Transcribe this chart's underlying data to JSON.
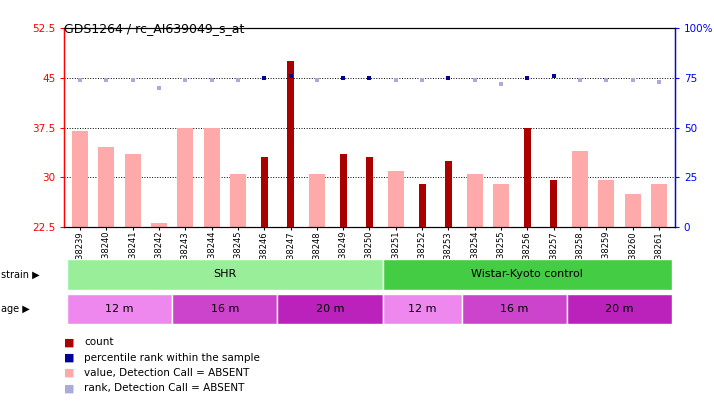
{
  "title": "GDS1264 / rc_AI639049_s_at",
  "samples": [
    "GSM38239",
    "GSM38240",
    "GSM38241",
    "GSM38242",
    "GSM38243",
    "GSM38244",
    "GSM38245",
    "GSM38246",
    "GSM38247",
    "GSM38248",
    "GSM38249",
    "GSM38250",
    "GSM38251",
    "GSM38252",
    "GSM38253",
    "GSM38254",
    "GSM38255",
    "GSM38256",
    "GSM38257",
    "GSM38258",
    "GSM38259",
    "GSM38260",
    "GSM38261"
  ],
  "count_values": [
    null,
    null,
    null,
    null,
    null,
    null,
    null,
    33.0,
    47.5,
    null,
    33.5,
    33.0,
    null,
    29.0,
    32.5,
    null,
    null,
    37.5,
    29.5,
    null,
    null,
    null,
    null
  ],
  "value_absent": [
    37.0,
    34.5,
    33.5,
    23.0,
    37.5,
    37.5,
    30.5,
    null,
    null,
    30.5,
    null,
    null,
    31.0,
    null,
    null,
    30.5,
    29.0,
    null,
    null,
    34.0,
    29.5,
    27.5,
    29.0
  ],
  "pct_rank_present": [
    null,
    null,
    null,
    null,
    null,
    null,
    null,
    75.0,
    76.0,
    null,
    75.0,
    75.0,
    null,
    null,
    75.0,
    null,
    null,
    75.0,
    76.0,
    null,
    null,
    null,
    null
  ],
  "pct_rank_absent": [
    74.0,
    74.0,
    74.0,
    70.0,
    74.0,
    74.0,
    74.0,
    null,
    null,
    74.0,
    null,
    null,
    74.0,
    74.0,
    null,
    74.0,
    72.0,
    null,
    null,
    74.0,
    74.0,
    74.0,
    73.0
  ],
  "ylim_left": [
    22.5,
    52.5
  ],
  "ylim_right": [
    0,
    100
  ],
  "yticks_left": [
    22.5,
    30,
    37.5,
    45,
    52.5
  ],
  "yticks_right": [
    0,
    25,
    50,
    75,
    100
  ],
  "ytick_labels_right": [
    "0",
    "25",
    "50",
    "75",
    "100%"
  ],
  "strain_groups": [
    {
      "label": "SHR",
      "start": 0,
      "end": 12,
      "color": "#99EE99"
    },
    {
      "label": "Wistar-Kyoto control",
      "start": 12,
      "end": 23,
      "color": "#44CC44"
    }
  ],
  "age_groups": [
    {
      "label": "12 m",
      "start": 0,
      "end": 4,
      "color": "#EE88EE"
    },
    {
      "label": "16 m",
      "start": 4,
      "end": 8,
      "color": "#CC44CC"
    },
    {
      "label": "20 m",
      "start": 8,
      "end": 12,
      "color": "#BB22BB"
    },
    {
      "label": "12 m",
      "start": 12,
      "end": 15,
      "color": "#EE88EE"
    },
    {
      "label": "16 m",
      "start": 15,
      "end": 19,
      "color": "#CC44CC"
    },
    {
      "label": "20 m",
      "start": 19,
      "end": 23,
      "color": "#BB22BB"
    }
  ],
  "color_count": "#AA0000",
  "color_value_absent": "#FFAAAA",
  "color_pct_present": "#000099",
  "color_pct_absent": "#AAAADD",
  "dotted_line_values": [
    30,
    37.5,
    45
  ],
  "background_color": "#FFFFFF",
  "plot_bg": "#FFFFFF"
}
